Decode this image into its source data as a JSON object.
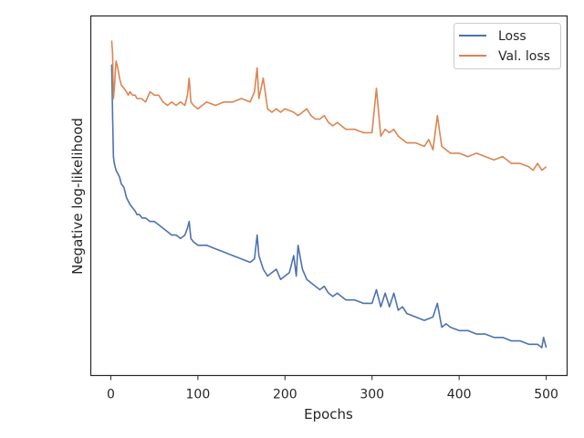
{
  "chart_data": {
    "type": "line",
    "xlabel": "Epochs",
    "ylabel": "Negative log-likelihood",
    "xlim": [
      -23,
      524
    ],
    "ylim": [
      0.0,
      1.0
    ],
    "y_scale_note": "y tick labels hidden; values normalized",
    "x_ticks": [
      0,
      100,
      200,
      300,
      400,
      500
    ],
    "x_tick_labels": [
      "0",
      "100",
      "200",
      "300",
      "400",
      "500"
    ],
    "grid": false,
    "legend": {
      "placement": "top-right",
      "entries": [
        "Loss",
        "Val. loss"
      ]
    },
    "series": [
      {
        "name": "Loss",
        "color": "#4c72b0",
        "x": [
          1,
          2,
          3,
          4,
          5,
          6,
          8,
          10,
          12,
          15,
          18,
          20,
          22,
          25,
          28,
          30,
          33,
          36,
          40,
          45,
          50,
          55,
          60,
          65,
          70,
          75,
          80,
          85,
          88,
          90,
          92,
          95,
          100,
          110,
          120,
          130,
          140,
          150,
          160,
          165,
          168,
          170,
          175,
          180,
          185,
          190,
          195,
          200,
          205,
          210,
          213,
          215,
          220,
          225,
          230,
          235,
          240,
          245,
          250,
          255,
          260,
          270,
          280,
          290,
          300,
          305,
          310,
          315,
          320,
          325,
          330,
          335,
          340,
          350,
          360,
          370,
          375,
          380,
          385,
          390,
          400,
          410,
          420,
          430,
          440,
          450,
          460,
          470,
          480,
          490,
          495,
          497,
          500
        ],
        "values": [
          0.87,
          0.72,
          0.6,
          0.58,
          0.57,
          0.56,
          0.55,
          0.54,
          0.52,
          0.51,
          0.48,
          0.47,
          0.46,
          0.45,
          0.44,
          0.43,
          0.43,
          0.42,
          0.42,
          0.41,
          0.41,
          0.4,
          0.39,
          0.38,
          0.37,
          0.37,
          0.36,
          0.37,
          0.39,
          0.41,
          0.36,
          0.35,
          0.34,
          0.34,
          0.33,
          0.32,
          0.31,
          0.3,
          0.29,
          0.3,
          0.37,
          0.31,
          0.27,
          0.25,
          0.26,
          0.27,
          0.24,
          0.25,
          0.26,
          0.31,
          0.25,
          0.34,
          0.27,
          0.24,
          0.23,
          0.22,
          0.21,
          0.22,
          0.2,
          0.19,
          0.2,
          0.18,
          0.18,
          0.17,
          0.17,
          0.21,
          0.16,
          0.2,
          0.16,
          0.2,
          0.15,
          0.16,
          0.14,
          0.13,
          0.12,
          0.13,
          0.17,
          0.1,
          0.11,
          0.1,
          0.09,
          0.09,
          0.08,
          0.08,
          0.07,
          0.07,
          0.06,
          0.06,
          0.05,
          0.05,
          0.04,
          0.07,
          0.04
        ]
      },
      {
        "name": "Val. loss",
        "color": "#dd8452",
        "x": [
          1,
          2,
          3,
          4,
          5,
          6,
          8,
          10,
          12,
          15,
          18,
          20,
          22,
          25,
          28,
          30,
          35,
          40,
          45,
          50,
          55,
          60,
          65,
          70,
          75,
          80,
          85,
          88,
          90,
          92,
          95,
          100,
          110,
          120,
          130,
          140,
          150,
          160,
          165,
          168,
          170,
          175,
          180,
          185,
          190,
          195,
          200,
          210,
          215,
          220,
          225,
          230,
          235,
          240,
          245,
          250,
          255,
          260,
          270,
          280,
          290,
          300,
          305,
          310,
          315,
          320,
          325,
          330,
          340,
          350,
          360,
          365,
          370,
          375,
          380,
          390,
          400,
          410,
          420,
          430,
          440,
          450,
          460,
          470,
          480,
          485,
          490,
          495,
          500
        ],
        "values": [
          0.94,
          0.9,
          0.77,
          0.8,
          0.84,
          0.88,
          0.86,
          0.83,
          0.81,
          0.8,
          0.79,
          0.78,
          0.79,
          0.78,
          0.78,
          0.77,
          0.77,
          0.76,
          0.79,
          0.78,
          0.78,
          0.76,
          0.75,
          0.76,
          0.75,
          0.76,
          0.75,
          0.78,
          0.83,
          0.76,
          0.75,
          0.74,
          0.76,
          0.75,
          0.76,
          0.76,
          0.77,
          0.76,
          0.79,
          0.86,
          0.77,
          0.83,
          0.74,
          0.73,
          0.74,
          0.73,
          0.74,
          0.73,
          0.72,
          0.73,
          0.74,
          0.72,
          0.71,
          0.71,
          0.72,
          0.7,
          0.69,
          0.7,
          0.68,
          0.68,
          0.67,
          0.67,
          0.8,
          0.66,
          0.68,
          0.67,
          0.68,
          0.66,
          0.64,
          0.64,
          0.63,
          0.65,
          0.62,
          0.72,
          0.63,
          0.61,
          0.61,
          0.6,
          0.61,
          0.6,
          0.59,
          0.6,
          0.58,
          0.58,
          0.57,
          0.56,
          0.58,
          0.56,
          0.57
        ]
      }
    ]
  }
}
